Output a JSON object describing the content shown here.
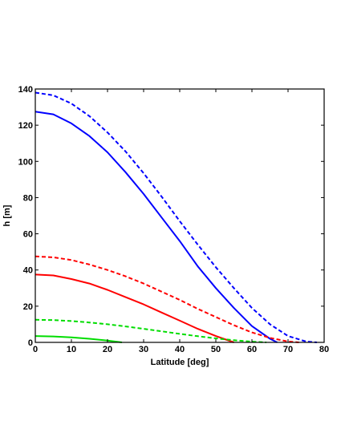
{
  "chart_data": {
    "type": "line",
    "title": "",
    "xlabel": "Latitude [deg]",
    "ylabel": "h [m]",
    "xlim": [
      0,
      80
    ],
    "ylim": [
      0,
      140
    ],
    "xticks": [
      0,
      10,
      20,
      30,
      40,
      50,
      60,
      70,
      80
    ],
    "yticks": [
      0,
      20,
      40,
      60,
      80,
      100,
      120,
      140
    ],
    "grid": false,
    "legend": "none",
    "series": [
      {
        "color": "#0000ff",
        "style": "solid",
        "x": [
          0,
          5,
          10,
          15,
          20,
          25,
          30,
          35,
          40,
          45,
          50,
          55,
          60,
          65,
          67
        ],
        "y": [
          127.5,
          126,
          121,
          114,
          105,
          94,
          82,
          69,
          56,
          42,
          30,
          19,
          9,
          2,
          0
        ]
      },
      {
        "color": "#0000ff",
        "style": "dashed",
        "x": [
          0,
          5,
          10,
          15,
          20,
          25,
          30,
          35,
          40,
          45,
          50,
          55,
          60,
          65,
          70,
          75,
          78
        ],
        "y": [
          138,
          136.5,
          132,
          125,
          116,
          105.5,
          93.5,
          80.5,
          67,
          54,
          41.5,
          30,
          19,
          10,
          3.5,
          0.5,
          0
        ]
      },
      {
        "color": "#ff0000",
        "style": "solid",
        "x": [
          0,
          5,
          10,
          15,
          20,
          25,
          30,
          35,
          40,
          45,
          50,
          55
        ],
        "y": [
          37.5,
          37,
          35,
          32.5,
          29,
          25,
          21,
          16.5,
          12,
          7.5,
          3.5,
          0
        ]
      },
      {
        "color": "#ff0000",
        "style": "dashed",
        "x": [
          0,
          5,
          10,
          15,
          20,
          25,
          30,
          35,
          40,
          45,
          50,
          55,
          60,
          65,
          70,
          73
        ],
        "y": [
          47.5,
          47,
          45.5,
          43,
          40,
          36.5,
          32.5,
          28,
          23.5,
          18.5,
          14,
          9.5,
          5.5,
          2.5,
          0.5,
          0
        ]
      },
      {
        "color": "#00dd00",
        "style": "solid",
        "x": [
          0,
          5,
          10,
          15,
          20,
          24
        ],
        "y": [
          3.5,
          3.3,
          2.8,
          2,
          1,
          0
        ]
      },
      {
        "color": "#00dd00",
        "style": "dashed",
        "x": [
          0,
          5,
          10,
          15,
          20,
          25,
          30,
          35,
          40,
          45,
          50,
          55,
          60,
          64
        ],
        "y": [
          12.5,
          12.3,
          11.8,
          11,
          10,
          8.8,
          7.5,
          6.1,
          4.7,
          3.4,
          2.2,
          1.2,
          0.4,
          0
        ]
      }
    ]
  }
}
